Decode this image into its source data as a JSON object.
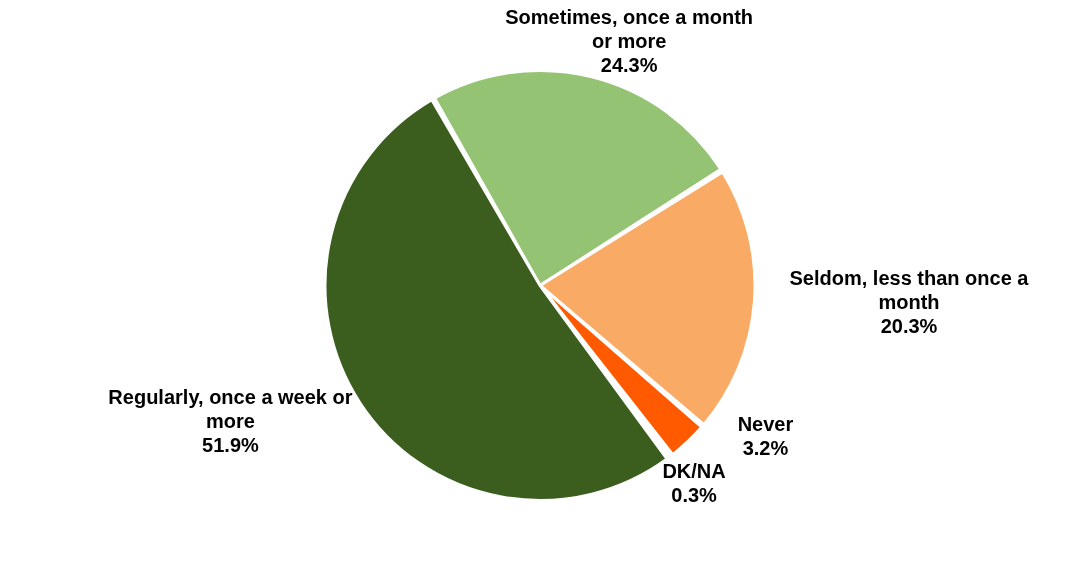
{
  "chart_data": {
    "type": "pie",
    "categories": [
      "Sometimes, once a month or more",
      "Seldom, less than once a month",
      "Never",
      "DK/NA",
      "Regularly, once a week or more"
    ],
    "values": [
      24.3,
      20.3,
      3.2,
      0.3,
      51.9
    ],
    "colors": [
      "#95c374",
      "#f9ab66",
      "#ff5a00",
      "#2b2b2b",
      "#3b5e1e"
    ],
    "value_labels": [
      "24.3%",
      "20.3%",
      "3.2%",
      "0.3%",
      "51.9%"
    ]
  }
}
